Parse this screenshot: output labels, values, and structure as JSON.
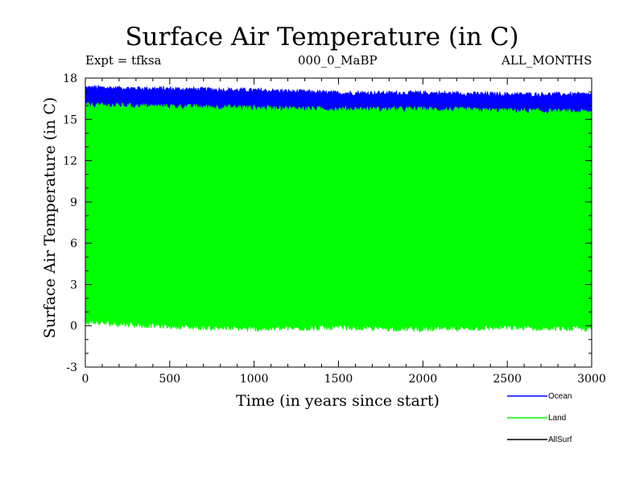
{
  "chart_data": {
    "type": "area",
    "title": "Surface Air Temperature (in C)",
    "subtitle_left": "Expt = tfksa",
    "subtitle_center": "000_0_MaBP",
    "subtitle_right": "ALL_MONTHS",
    "xlabel": "Time (in years since start)",
    "ylabel": "Surface Air Temperature (in C)",
    "xlim": [
      0,
      3000
    ],
    "ylim": [
      -3,
      18
    ],
    "x_ticks": [
      0,
      500,
      1000,
      1500,
      2000,
      2500,
      3000
    ],
    "y_ticks": [
      -3,
      0,
      3,
      6,
      9,
      12,
      15,
      18
    ],
    "legend_position": "bottom-right",
    "series": [
      {
        "name": "Ocean",
        "color": "#0000ff",
        "x": [
          0,
          500,
          1000,
          1500,
          2000,
          2500,
          3000
        ],
        "lower": [
          15.9,
          15.8,
          15.7,
          15.6,
          15.6,
          15.5,
          15.4
        ],
        "upper": [
          17.3,
          17.2,
          17.1,
          16.9,
          16.9,
          16.8,
          16.8
        ]
      },
      {
        "name": "Land",
        "color": "#00ff00",
        "x": [
          0,
          500,
          1000,
          1500,
          2000,
          2500,
          3000
        ],
        "lower": [
          0.3,
          0.0,
          -0.2,
          -0.1,
          -0.2,
          -0.1,
          -0.2
        ],
        "upper": [
          16.0,
          15.9,
          15.8,
          15.7,
          15.7,
          15.6,
          15.5
        ]
      },
      {
        "name": "AllSurf",
        "color": "#000000",
        "x": [],
        "lower": [],
        "upper": []
      }
    ]
  }
}
